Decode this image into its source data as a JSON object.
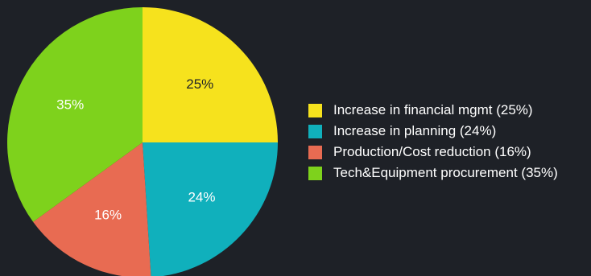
{
  "chart_data": {
    "type": "pie",
    "title": "",
    "slices": [
      {
        "label": "25%",
        "value": 25,
        "color": "#f6e21d",
        "legend": "Increase in financial mgmt (25%)"
      },
      {
        "label": "24%",
        "value": 24,
        "color": "#10b0bc",
        "legend": "Increase in planning (24%)"
      },
      {
        "label": "16%",
        "value": 16,
        "color": "#e86b52",
        "legend": "Production/Cost reduction (16%)"
      },
      {
        "label": "35%",
        "value": 35,
        "color": "#7ed21c",
        "legend": "Tech&Equipment procurement (35%)"
      }
    ],
    "start_angle_deg": 0,
    "direction": "clockwise",
    "legend_position": "right"
  },
  "background_color": "#1e2127"
}
